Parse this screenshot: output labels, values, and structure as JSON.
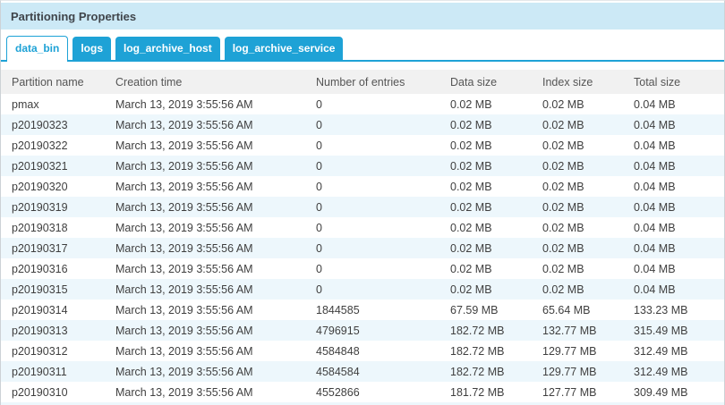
{
  "panel": {
    "title": "Partitioning Properties"
  },
  "tabs": [
    {
      "label": "data_bin",
      "active": true
    },
    {
      "label": "logs",
      "active": false
    },
    {
      "label": "log_archive_host",
      "active": false
    },
    {
      "label": "log_archive_service",
      "active": false
    }
  ],
  "table": {
    "columns": [
      "Partition name",
      "Creation time",
      "Number of entries",
      "Data size",
      "Index size",
      "Total size"
    ],
    "rows": [
      [
        "pmax",
        "March 13, 2019 3:55:56 AM",
        "0",
        "0.02 MB",
        "0.02 MB",
        "0.04 MB"
      ],
      [
        "p20190323",
        "March 13, 2019 3:55:56 AM",
        "0",
        "0.02 MB",
        "0.02 MB",
        "0.04 MB"
      ],
      [
        "p20190322",
        "March 13, 2019 3:55:56 AM",
        "0",
        "0.02 MB",
        "0.02 MB",
        "0.04 MB"
      ],
      [
        "p20190321",
        "March 13, 2019 3:55:56 AM",
        "0",
        "0.02 MB",
        "0.02 MB",
        "0.04 MB"
      ],
      [
        "p20190320",
        "March 13, 2019 3:55:56 AM",
        "0",
        "0.02 MB",
        "0.02 MB",
        "0.04 MB"
      ],
      [
        "p20190319",
        "March 13, 2019 3:55:56 AM",
        "0",
        "0.02 MB",
        "0.02 MB",
        "0.04 MB"
      ],
      [
        "p20190318",
        "March 13, 2019 3:55:56 AM",
        "0",
        "0.02 MB",
        "0.02 MB",
        "0.04 MB"
      ],
      [
        "p20190317",
        "March 13, 2019 3:55:56 AM",
        "0",
        "0.02 MB",
        "0.02 MB",
        "0.04 MB"
      ],
      [
        "p20190316",
        "March 13, 2019 3:55:56 AM",
        "0",
        "0.02 MB",
        "0.02 MB",
        "0.04 MB"
      ],
      [
        "p20190315",
        "March 13, 2019 3:55:56 AM",
        "0",
        "0.02 MB",
        "0.02 MB",
        "0.04 MB"
      ],
      [
        "p20190314",
        "March 13, 2019 3:55:56 AM",
        "1844585",
        "67.59 MB",
        "65.64 MB",
        "133.23 MB"
      ],
      [
        "p20190313",
        "March 13, 2019 3:55:56 AM",
        "4796915",
        "182.72 MB",
        "132.77 MB",
        "315.49 MB"
      ],
      [
        "p20190312",
        "March 13, 2019 3:55:56 AM",
        "4584848",
        "182.72 MB",
        "129.77 MB",
        "312.49 MB"
      ],
      [
        "p20190311",
        "March 13, 2019 3:55:56 AM",
        "4584584",
        "182.72 MB",
        "129.77 MB",
        "312.49 MB"
      ],
      [
        "p20190310",
        "March 13, 2019 3:55:56 AM",
        "4552866",
        "181.72 MB",
        "127.77 MB",
        "309.49 MB"
      ]
    ]
  },
  "colors": {
    "accent_blue": "#1ea2d6",
    "header_bar_bg": "#cce9f6",
    "row_tint": "#edf7fc",
    "table_header_bg": "#f1f1f1"
  }
}
